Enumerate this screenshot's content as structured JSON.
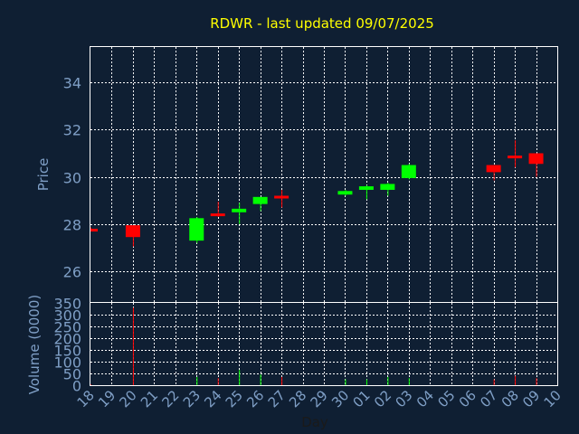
{
  "colors": {
    "background": "#0f1f33",
    "title": "#ffff00",
    "axis_text": "#7f9fc6",
    "grid": "#ffffff",
    "up": "#00ff00",
    "down": "#ff0000"
  },
  "chart_data": {
    "type": "candlestick",
    "title": "RDWR - last updated 09/07/2025",
    "xlabel": "Day",
    "price_panel": {
      "ylabel": "Price",
      "ylim": [
        24.7,
        35.5
      ],
      "yticks": [
        26,
        28,
        30,
        32,
        34
      ],
      "grid": true
    },
    "volume_panel": {
      "ylabel": "Volume (0000)",
      "ylim": [
        0,
        350
      ],
      "yticks": [
        0,
        50,
        100,
        150,
        200,
        250,
        300,
        350
      ],
      "grid": true
    },
    "x_ticks": [
      "18",
      "19",
      "20",
      "21",
      "22",
      "23",
      "24",
      "25",
      "26",
      "27",
      "28",
      "29",
      "30",
      "01",
      "02",
      "03",
      "04",
      "05",
      "06",
      "07",
      "08",
      "09",
      "10"
    ],
    "candles": [
      {
        "day": "18",
        "open": 27.8,
        "close": 27.75,
        "high": 27.85,
        "low": 27.7,
        "volume": 3
      },
      {
        "day": "20",
        "open": 27.95,
        "close": 27.45,
        "high": 27.95,
        "low": 27.05,
        "volume": 330
      },
      {
        "day": "23",
        "open": 27.3,
        "close": 28.25,
        "high": 28.3,
        "low": 27.2,
        "volume": 35
      },
      {
        "day": "24",
        "open": 28.45,
        "close": 28.35,
        "high": 28.95,
        "low": 28.3,
        "volume": 30
      },
      {
        "day": "25",
        "open": 28.5,
        "close": 28.65,
        "high": 28.9,
        "low": 28.0,
        "volume": 65
      },
      {
        "day": "26",
        "open": 28.85,
        "close": 29.15,
        "high": 29.15,
        "low": 28.55,
        "volume": 45
      },
      {
        "day": "27",
        "open": 29.2,
        "close": 29.15,
        "high": 29.45,
        "low": 28.7,
        "volume": 35
      },
      {
        "day": "30",
        "open": 29.25,
        "close": 29.4,
        "high": 29.45,
        "low": 29.2,
        "volume": 25
      },
      {
        "day": "01",
        "open": 29.45,
        "close": 29.6,
        "high": 29.65,
        "low": 29.05,
        "volume": 25
      },
      {
        "day": "02",
        "open": 29.45,
        "close": 29.7,
        "high": 29.75,
        "low": 29.2,
        "volume": 35
      },
      {
        "day": "03",
        "open": 29.95,
        "close": 30.5,
        "high": 30.55,
        "low": 29.9,
        "volume": 30
      },
      {
        "day": "07",
        "open": 30.5,
        "close": 30.2,
        "high": 30.5,
        "low": 29.85,
        "volume": 25
      },
      {
        "day": "08",
        "open": 30.9,
        "close": 30.8,
        "high": 31.55,
        "low": 30.4,
        "volume": 40
      },
      {
        "day": "09",
        "open": 31.0,
        "close": 30.55,
        "high": 31.0,
        "low": 30.0,
        "volume": 30
      }
    ]
  }
}
